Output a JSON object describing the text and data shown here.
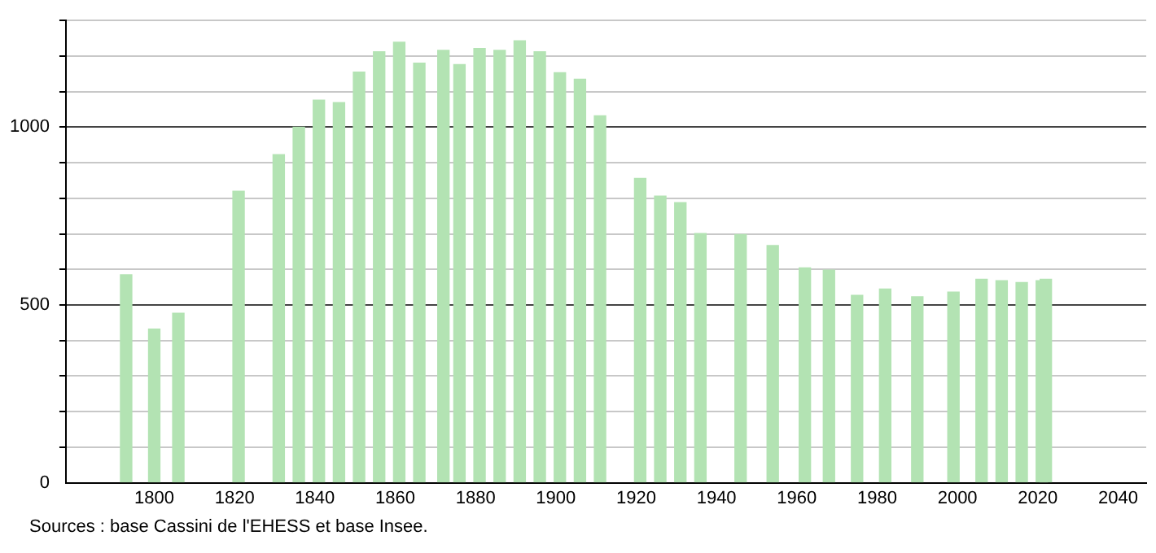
{
  "chart_data": {
    "type": "bar",
    "x": [
      1793,
      1800,
      1806,
      1821,
      1831,
      1836,
      1841,
      1846,
      1851,
      1856,
      1861,
      1866,
      1872,
      1876,
      1881,
      1886,
      1891,
      1896,
      1901,
      1906,
      1911,
      1921,
      1926,
      1931,
      1936,
      1946,
      1954,
      1962,
      1968,
      1975,
      1982,
      1990,
      1999,
      2006,
      2011,
      2016,
      2021,
      2022
    ],
    "values": [
      585,
      432,
      477,
      820,
      923,
      1000,
      1076,
      1069,
      1155,
      1212,
      1239,
      1180,
      1216,
      1176,
      1221,
      1216,
      1243,
      1212,
      1153,
      1135,
      1032,
      856,
      806,
      788,
      701,
      698,
      667,
      604,
      598,
      527,
      545,
      523,
      536,
      572,
      568,
      563,
      568,
      572
    ],
    "color": "#b3e3b3",
    "xlim": [
      1778,
      2047
    ],
    "xticks": [
      1800,
      1820,
      1840,
      1860,
      1880,
      1900,
      1920,
      1940,
      1960,
      1980,
      2000,
      2020,
      2040
    ],
    "ylim": [
      0,
      1300
    ],
    "yticks": [
      0,
      {
        "value": 100,
        "label": null
      },
      {
        "value": 200,
        "label": null
      },
      {
        "value": 300,
        "label": null
      },
      {
        "value": 400,
        "label": null
      },
      500,
      {
        "value": 600,
        "label": null
      },
      {
        "value": 700,
        "label": null
      },
      {
        "value": 800,
        "label": null
      },
      {
        "value": 900,
        "label": null
      },
      1000,
      {
        "value": 1100,
        "label": null
      },
      {
        "value": 1200,
        "label": null
      },
      {
        "value": 1300,
        "label": null
      }
    ],
    "grid": "y",
    "legend": false,
    "annotations": [
      "Sources : base Cassini de l'EHESS et base Insee."
    ]
  }
}
